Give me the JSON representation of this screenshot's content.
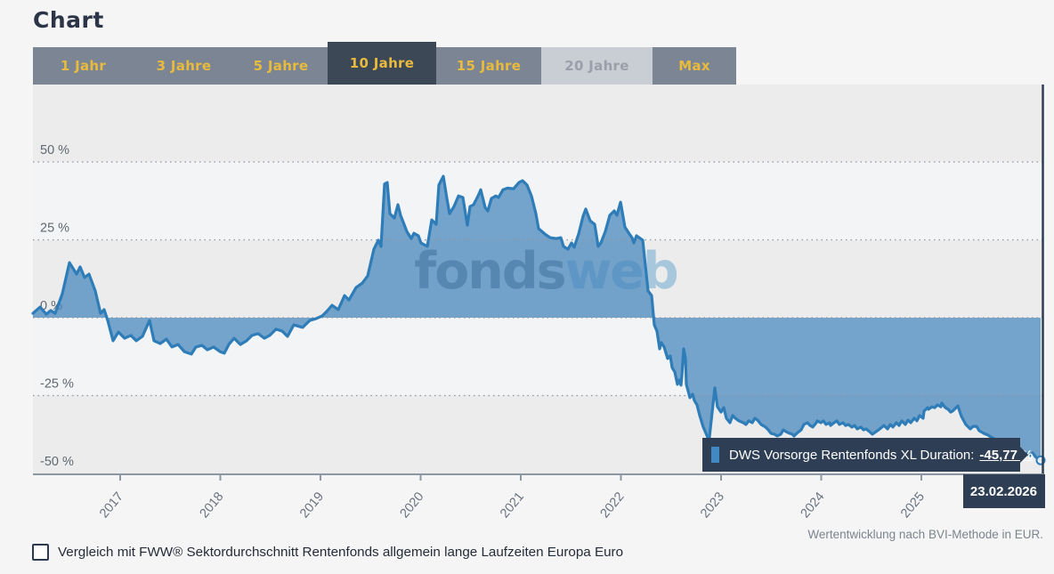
{
  "page": {
    "title": "Chart"
  },
  "tabs": [
    {
      "label": "1 Jahr",
      "state": "normal"
    },
    {
      "label": "3 Jahre",
      "state": "normal"
    },
    {
      "label": "5 Jahre",
      "state": "normal"
    },
    {
      "label": "10 Jahre",
      "state": "selected"
    },
    {
      "label": "15 Jahre",
      "state": "normal"
    },
    {
      "label": "20 Jahre",
      "state": "disabled"
    },
    {
      "label": "Max",
      "state": "normal"
    }
  ],
  "watermark": {
    "part1": "fonds",
    "part2": "web"
  },
  "tooltip": {
    "series_label": "DWS Vorsorge Rentenfonds XL Duration:",
    "value": "-45,77 %",
    "date": "23.02.2026"
  },
  "footnote": "Wertentwicklung nach BVI-Methode in EUR.",
  "compare_checkbox": {
    "checked": false,
    "label": "Vergleich mit FWW® Sektordurchschnitt Rentenfonds allgemein lange Laufzeiten Europa Euro"
  },
  "colors": {
    "accent_gold": "#e8ba3d",
    "navy": "#2e3f55",
    "tab_normal_bg": "#7b8593",
    "tab_selected_bg": "#3d4857",
    "tab_disabled_bg": "#c9ced4",
    "line": "#2e7db8",
    "area_fill": "#4283bb",
    "band_dark": "#ececec",
    "band_light": "#f3f4f5",
    "grid": "#8e959d",
    "axis": "#8d96a3",
    "y_label": "#5f6872",
    "x_label": "#6a7380",
    "watermark_fonds": "#8a9097",
    "watermark_web": "#a7c7dd"
  },
  "chart_data": {
    "type": "area",
    "title": "Chart",
    "unit": "%",
    "baseline": 0,
    "grid": "dotted-horizontal",
    "xlim": [
      2016.13,
      2026.22
    ],
    "ylim": [
      -50,
      75
    ],
    "y_ticks": [
      {
        "label": "50 %",
        "value": 50
      },
      {
        "label": "25 %",
        "value": 25
      },
      {
        "label": "0 %",
        "value": 0
      },
      {
        "label": "-25 %",
        "value": -25
      },
      {
        "label": "-50 %",
        "value": -50
      }
    ],
    "x_ticks": [
      {
        "label": "2017",
        "year": 2017
      },
      {
        "label": "2018",
        "year": 2018
      },
      {
        "label": "2019",
        "year": 2019
      },
      {
        "label": "2020",
        "year": 2020
      },
      {
        "label": "2021",
        "year": 2021
      },
      {
        "label": "2022",
        "year": 2022
      },
      {
        "label": "2023",
        "year": 2023
      },
      {
        "label": "2024",
        "year": 2024
      },
      {
        "label": "2025",
        "year": 2025
      }
    ],
    "series": [
      {
        "name": "DWS Vorsorge Rentenfonds XL Duration",
        "last_value": -45.77,
        "last_value_label": "-45,77 %",
        "last_date": "23.02.2026",
        "points": [
          [
            2016.129,
            1.4
          ],
          [
            2016.2,
            3.4
          ],
          [
            2016.262,
            1.1
          ],
          [
            2016.307,
            2.3
          ],
          [
            2016.351,
            1.4
          ],
          [
            2016.422,
            7.7
          ],
          [
            2016.493,
            17.7
          ],
          [
            2016.538,
            15.4
          ],
          [
            2016.564,
            14
          ],
          [
            2016.6,
            16.3
          ],
          [
            2016.644,
            12.9
          ],
          [
            2016.689,
            14
          ],
          [
            2016.751,
            8.6
          ],
          [
            2016.804,
            1.4
          ],
          [
            2016.84,
            2.6
          ],
          [
            2016.876,
            -0.9
          ],
          [
            2016.929,
            -7.4
          ],
          [
            2016.982,
            -4.6
          ],
          [
            2017.044,
            -6.6
          ],
          [
            2017.107,
            -5.7
          ],
          [
            2017.16,
            -7.4
          ],
          [
            2017.222,
            -6
          ],
          [
            2017.293,
            -0.9
          ],
          [
            2017.338,
            -7.4
          ],
          [
            2017.4,
            -8.3
          ],
          [
            2017.462,
            -6.9
          ],
          [
            2017.516,
            -9.4
          ],
          [
            2017.578,
            -8.6
          ],
          [
            2017.64,
            -10.9
          ],
          [
            2017.711,
            -11.7
          ],
          [
            2017.756,
            -9.4
          ],
          [
            2017.818,
            -8.9
          ],
          [
            2017.871,
            -10.3
          ],
          [
            2017.933,
            -9.4
          ],
          [
            2017.996,
            -10.9
          ],
          [
            2018.04,
            -11.4
          ],
          [
            2018.084,
            -8.6
          ],
          [
            2018.138,
            -6.6
          ],
          [
            2018.2,
            -8.6
          ],
          [
            2018.262,
            -7.4
          ],
          [
            2018.316,
            -5.7
          ],
          [
            2018.378,
            -5.1
          ],
          [
            2018.44,
            -6.6
          ],
          [
            2018.493,
            -5.7
          ],
          [
            2018.556,
            -3.7
          ],
          [
            2018.618,
            -4.3
          ],
          [
            2018.671,
            -6
          ],
          [
            2018.733,
            -2.3
          ],
          [
            2018.822,
            -3.1
          ],
          [
            2018.893,
            -0.9
          ],
          [
            2018.956,
            -0.3
          ],
          [
            2019.018,
            0.6
          ],
          [
            2019.062,
            2
          ],
          [
            2019.116,
            4
          ],
          [
            2019.178,
            2.6
          ],
          [
            2019.24,
            7.1
          ],
          [
            2019.284,
            5.7
          ],
          [
            2019.356,
            9.7
          ],
          [
            2019.418,
            11.1
          ],
          [
            2019.471,
            13.4
          ],
          [
            2019.533,
            22
          ],
          [
            2019.578,
            24.9
          ],
          [
            2019.604,
            22.9
          ],
          [
            2019.64,
            42.9
          ],
          [
            2019.667,
            43.4
          ],
          [
            2019.693,
            33.4
          ],
          [
            2019.738,
            32
          ],
          [
            2019.773,
            36.3
          ],
          [
            2019.8,
            32.9
          ],
          [
            2019.862,
            27.7
          ],
          [
            2019.907,
            25.4
          ],
          [
            2019.933,
            27.1
          ],
          [
            2019.978,
            26.3
          ],
          [
            2020.004,
            24
          ],
          [
            2020.067,
            22.9
          ],
          [
            2020.111,
            31.4
          ],
          [
            2020.156,
            30
          ],
          [
            2020.182,
            42.6
          ],
          [
            2020.227,
            45.4
          ],
          [
            2020.262,
            38.3
          ],
          [
            2020.289,
            33.4
          ],
          [
            2020.333,
            35.7
          ],
          [
            2020.378,
            39.1
          ],
          [
            2020.422,
            38.6
          ],
          [
            2020.467,
            29.7
          ],
          [
            2020.493,
            35.7
          ],
          [
            2020.529,
            36.3
          ],
          [
            2020.573,
            39.1
          ],
          [
            2020.6,
            41.1
          ],
          [
            2020.644,
            35.4
          ],
          [
            2020.671,
            34.3
          ],
          [
            2020.707,
            38.3
          ],
          [
            2020.751,
            39.1
          ],
          [
            2020.778,
            38.6
          ],
          [
            2020.822,
            41.1
          ],
          [
            2020.867,
            41.6
          ],
          [
            2020.929,
            41.4
          ],
          [
            2020.982,
            43.4
          ],
          [
            2021.018,
            44
          ],
          [
            2021.062,
            42.6
          ],
          [
            2021.107,
            39.1
          ],
          [
            2021.151,
            33.4
          ],
          [
            2021.178,
            28.6
          ],
          [
            2021.24,
            26.9
          ],
          [
            2021.293,
            25.7
          ],
          [
            2021.356,
            25.4
          ],
          [
            2021.4,
            25.7
          ],
          [
            2021.427,
            22.9
          ],
          [
            2021.471,
            22
          ],
          [
            2021.507,
            24
          ],
          [
            2021.533,
            22.6
          ],
          [
            2021.578,
            26.9
          ],
          [
            2021.622,
            32.6
          ],
          [
            2021.649,
            34.9
          ],
          [
            2021.693,
            31.1
          ],
          [
            2021.738,
            30
          ],
          [
            2021.773,
            22.9
          ],
          [
            2021.8,
            24
          ],
          [
            2021.844,
            27.7
          ],
          [
            2021.889,
            32.9
          ],
          [
            2021.933,
            34.3
          ],
          [
            2021.96,
            32.9
          ],
          [
            2021.996,
            37.1
          ],
          [
            2022.04,
            29.1
          ],
          [
            2022.084,
            26.9
          ],
          [
            2022.111,
            25.7
          ],
          [
            2022.129,
            24
          ],
          [
            2022.156,
            26.3
          ],
          [
            2022.218,
            24.9
          ],
          [
            2022.271,
            8.6
          ],
          [
            2022.307,
            7.1
          ],
          [
            2022.333,
            -2.3
          ],
          [
            2022.36,
            -4.3
          ],
          [
            2022.387,
            -10
          ],
          [
            2022.404,
            -8
          ],
          [
            2022.431,
            -9.4
          ],
          [
            2022.467,
            -13.1
          ],
          [
            2022.493,
            -12.3
          ],
          [
            2022.511,
            -16
          ],
          [
            2022.538,
            -17.4
          ],
          [
            2022.564,
            -21.4
          ],
          [
            2022.582,
            -20
          ],
          [
            2022.6,
            -21.7
          ],
          [
            2022.609,
            -18.6
          ],
          [
            2022.627,
            -10
          ],
          [
            2022.644,
            -13.1
          ],
          [
            2022.653,
            -21.4
          ],
          [
            2022.689,
            -25.7
          ],
          [
            2022.716,
            -24.6
          ],
          [
            2022.733,
            -26.6
          ],
          [
            2022.76,
            -28
          ],
          [
            2022.787,
            -31.4
          ],
          [
            2022.822,
            -35.1
          ],
          [
            2022.849,
            -37.1
          ],
          [
            2022.88,
            -39.5
          ],
          [
            2022.902,
            -33
          ],
          [
            2022.938,
            -22.5
          ],
          [
            2022.964,
            -28.6
          ],
          [
            2023,
            -30.3
          ],
          [
            2023.027,
            -28.9
          ],
          [
            2023.053,
            -32.3
          ],
          [
            2023.089,
            -33.7
          ],
          [
            2023.116,
            -31.4
          ],
          [
            2023.142,
            -32.3
          ],
          [
            2023.178,
            -33.1
          ],
          [
            2023.222,
            -33.7
          ],
          [
            2023.249,
            -34.3
          ],
          [
            2023.276,
            -33.1
          ],
          [
            2023.311,
            -33.7
          ],
          [
            2023.338,
            -32.3
          ],
          [
            2023.364,
            -32.9
          ],
          [
            2023.4,
            -34.3
          ],
          [
            2023.444,
            -35.1
          ],
          [
            2023.471,
            -36
          ],
          [
            2023.498,
            -37.1
          ],
          [
            2023.533,
            -37.4
          ],
          [
            2023.56,
            -38
          ],
          [
            2023.596,
            -37.4
          ],
          [
            2023.622,
            -36
          ],
          [
            2023.649,
            -36.6
          ],
          [
            2023.684,
            -37.1
          ],
          [
            2023.711,
            -37.4
          ],
          [
            2023.729,
            -38
          ],
          [
            2023.756,
            -37.1
          ],
          [
            2023.8,
            -36
          ],
          [
            2023.827,
            -34.3
          ],
          [
            2023.862,
            -33.7
          ],
          [
            2023.889,
            -34.6
          ],
          [
            2023.916,
            -35.1
          ],
          [
            2023.951,
            -33.7
          ],
          [
            2023.96,
            -33.1
          ],
          [
            2023.996,
            -33.7
          ],
          [
            2024.022,
            -33.1
          ],
          [
            2024.049,
            -34.3
          ],
          [
            2024.084,
            -33.7
          ],
          [
            2024.093,
            -34.6
          ],
          [
            2024.129,
            -33.7
          ],
          [
            2024.156,
            -33.1
          ],
          [
            2024.182,
            -34.3
          ],
          [
            2024.218,
            -33.7
          ],
          [
            2024.244,
            -34.6
          ],
          [
            2024.271,
            -34.3
          ],
          [
            2024.307,
            -35.1
          ],
          [
            2024.333,
            -34.6
          ],
          [
            2024.36,
            -35.7
          ],
          [
            2024.396,
            -35.1
          ],
          [
            2024.422,
            -36
          ],
          [
            2024.449,
            -35.7
          ],
          [
            2024.484,
            -36.6
          ],
          [
            2024.511,
            -37.4
          ],
          [
            2024.573,
            -36
          ],
          [
            2024.627,
            -34.6
          ],
          [
            2024.662,
            -35.7
          ],
          [
            2024.689,
            -34.3
          ],
          [
            2024.716,
            -35.1
          ],
          [
            2024.751,
            -33.7
          ],
          [
            2024.778,
            -34.6
          ],
          [
            2024.804,
            -33.1
          ],
          [
            2024.84,
            -34.3
          ],
          [
            2024.867,
            -32.9
          ],
          [
            2024.893,
            -33.7
          ],
          [
            2024.929,
            -32.3
          ],
          [
            2024.956,
            -33.1
          ],
          [
            2024.982,
            -31.4
          ],
          [
            2025.018,
            -32.3
          ],
          [
            2025.027,
            -30
          ],
          [
            2025.062,
            -28.9
          ],
          [
            2025.071,
            -29.4
          ],
          [
            2025.107,
            -28.6
          ],
          [
            2025.133,
            -28.9
          ],
          [
            2025.16,
            -28
          ],
          [
            2025.196,
            -28.6
          ],
          [
            2025.204,
            -27.4
          ],
          [
            2025.24,
            -28.9
          ],
          [
            2025.267,
            -29.4
          ],
          [
            2025.293,
            -30.3
          ],
          [
            2025.311,
            -30
          ],
          [
            2025.364,
            -28.3
          ],
          [
            2025.4,
            -31.7
          ],
          [
            2025.444,
            -34.3
          ],
          [
            2025.489,
            -35.7
          ],
          [
            2025.516,
            -34.9
          ],
          [
            2025.551,
            -34.9
          ],
          [
            2025.578,
            -36.3
          ],
          [
            2025.622,
            -37.1
          ],
          [
            2025.667,
            -37.7
          ],
          [
            2025.693,
            -38.3
          ],
          [
            2025.756,
            -39.4
          ],
          [
            2025.827,
            -40.6
          ],
          [
            2025.898,
            -41.7
          ],
          [
            2025.96,
            -42.6
          ],
          [
            2026.022,
            -43.1
          ],
          [
            2026.058,
            -43.7
          ],
          [
            2026.084,
            -44.3
          ],
          [
            2026.111,
            -43.4
          ],
          [
            2026.138,
            -44.6
          ],
          [
            2026.164,
            -45.3
          ],
          [
            2026.191,
            -45.77
          ]
        ]
      }
    ]
  }
}
